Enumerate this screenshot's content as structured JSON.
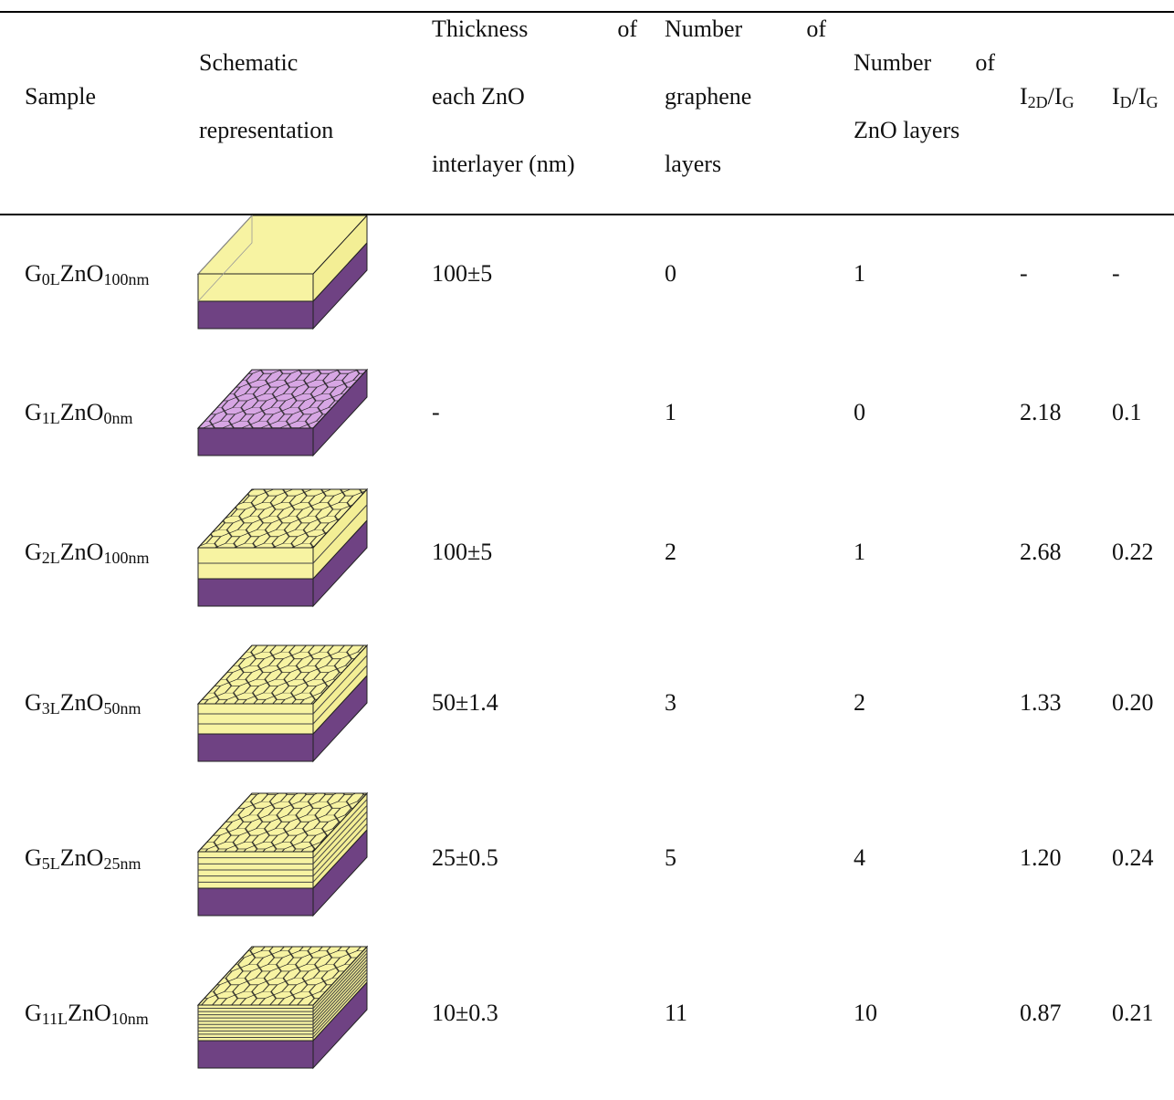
{
  "header": {
    "columns": [
      {
        "lines": [
          "Sample"
        ]
      },
      {
        "lines": [
          "Schematic",
          "representation"
        ]
      },
      {
        "lines": [
          "Thickness of",
          "each ZnO",
          "interlayer (nm)"
        ]
      },
      {
        "lines": [
          "Number of",
          "graphene",
          "layers"
        ]
      },
      {
        "lines": [
          "Number of",
          "ZnO layers"
        ]
      },
      {
        "parts": [
          [
            "I",
            "2D"
          ],
          [
            "/I",
            "G"
          ]
        ]
      },
      {
        "parts": [
          [
            "I",
            "D"
          ],
          [
            "/I",
            "G"
          ]
        ]
      }
    ]
  },
  "table": {
    "rows": [
      {
        "sample": [
          [
            "G",
            "0L"
          ],
          [
            "ZnO",
            "100nm"
          ]
        ],
        "thickness": "100±5",
        "graphene_layers": "0",
        "zno_layers": "1",
        "i2d_ig": "-",
        "id_ig": "-"
      },
      {
        "sample": [
          [
            "G",
            "1L"
          ],
          [
            "ZnO",
            "0nm"
          ]
        ],
        "thickness": "-",
        "graphene_layers": "1",
        "zno_layers": "0",
        "i2d_ig": "2.18",
        "id_ig": "0.1"
      },
      {
        "sample": [
          [
            "G",
            "2L"
          ],
          [
            "ZnO",
            "100nm"
          ]
        ],
        "thickness": "100±5",
        "graphene_layers": "2",
        "zno_layers": "1",
        "i2d_ig": "2.68",
        "id_ig": "0.22"
      },
      {
        "sample": [
          [
            "G",
            "3L"
          ],
          [
            "ZnO",
            "50nm"
          ]
        ],
        "thickness": "50±1.4",
        "graphene_layers": "3",
        "zno_layers": "2",
        "i2d_ig": "1.33",
        "id_ig": "0.20"
      },
      {
        "sample": [
          [
            "G",
            "5L"
          ],
          [
            "ZnO",
            "25nm"
          ]
        ],
        "thickness": "25±0.5",
        "graphene_layers": "5",
        "zno_layers": "4",
        "i2d_ig": "1.20",
        "id_ig": "0.24"
      },
      {
        "sample": [
          [
            "G",
            "11L"
          ],
          [
            "ZnO",
            "10nm"
          ]
        ],
        "thickness": "10±0.3",
        "graphene_layers": "11",
        "zno_layers": "10",
        "i2d_ig": "0.87",
        "id_ig": "0.21"
      }
    ]
  }
}
